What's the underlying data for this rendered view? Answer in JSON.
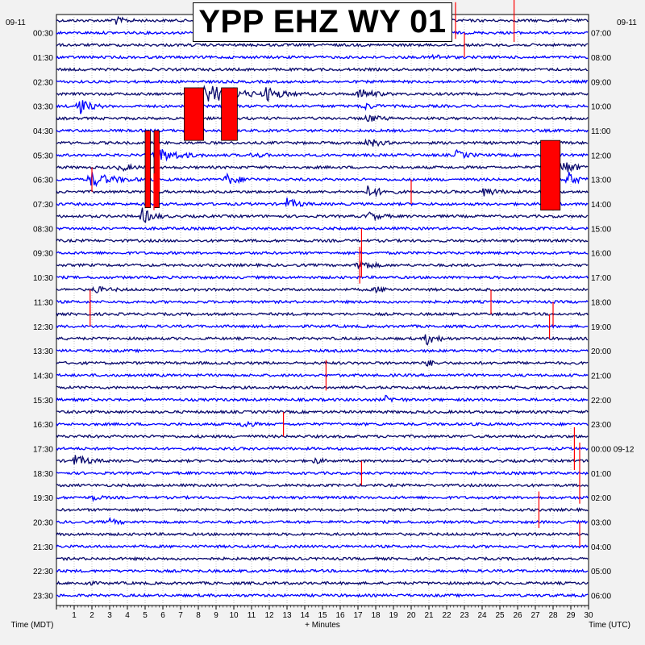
{
  "chart_data": {
    "type": "seismogram",
    "title": "YPP EHZ WY 01",
    "left_date": "09-11",
    "right_date": "09-11",
    "xlabel": "+ Minutes",
    "left_axis_label": "Time (MDT)",
    "right_axis_label": "Time (UTC)",
    "x_ticks": [
      "1",
      "2",
      "3",
      "4",
      "5",
      "6",
      "7",
      "8",
      "9",
      "10",
      "11",
      "12",
      "13",
      "14",
      "15",
      "16",
      "17",
      "18",
      "19",
      "20",
      "21",
      "22",
      "23",
      "24",
      "25",
      "26",
      "27",
      "28",
      "29",
      "30"
    ],
    "xlim": [
      0,
      30
    ],
    "left_times": [
      "00:30",
      "01:30",
      "02:30",
      "03:30",
      "04:30",
      "05:30",
      "06:30",
      "07:30",
      "08:30",
      "09:30",
      "10:30",
      "11:30",
      "12:30",
      "13:30",
      "14:30",
      "15:30",
      "16:30",
      "17:30",
      "18:30",
      "19:30",
      "20:30",
      "21:30",
      "22:30",
      "23:30"
    ],
    "right_times": [
      "07:00",
      "08:00",
      "09:00",
      "10:00",
      "11:00",
      "12:00",
      "13:00",
      "14:00",
      "15:00",
      "16:00",
      "17:00",
      "18:00",
      "19:00",
      "20:00",
      "21:00",
      "22:00",
      "23:00",
      "00:00 09-12",
      "01:00",
      "02:00",
      "03:00",
      "04:00",
      "05:00",
      "06:00"
    ],
    "trace_count": 48,
    "trace_colors": [
      "#0a0a6e",
      "#0000ff"
    ],
    "clip_color": "#ff0000",
    "grid": true,
    "events": [
      {
        "trace": 0,
        "minute": 3.2,
        "amp": 0.8,
        "len": 1.5
      },
      {
        "trace": 3,
        "minute": 21.1,
        "amp": 0.6,
        "len": 1.5
      },
      {
        "trace": 6,
        "minute": 8.3,
        "amp": 1.8,
        "len": 4.5
      },
      {
        "trace": 6,
        "minute": 11.8,
        "amp": 1.0,
        "len": 2.5
      },
      {
        "trace": 6,
        "minute": 17.0,
        "amp": 1.0,
        "len": 2.0
      },
      {
        "trace": 7,
        "minute": 1.2,
        "amp": 1.8,
        "len": 1.5
      },
      {
        "trace": 7,
        "minute": 17.2,
        "amp": 0.7,
        "len": 1.5
      },
      {
        "trace": 8,
        "minute": 17.5,
        "amp": 0.8,
        "len": 1.5
      },
      {
        "trace": 10,
        "minute": 17.5,
        "amp": 1.0,
        "len": 1.5
      },
      {
        "trace": 11,
        "minute": 5.5,
        "amp": 1.5,
        "len": 3.0
      },
      {
        "trace": 11,
        "minute": 11.0,
        "amp": 0.5,
        "len": 1.5
      },
      {
        "trace": 11,
        "minute": 22.5,
        "amp": 0.8,
        "len": 1.5
      },
      {
        "trace": 12,
        "minute": 3.5,
        "amp": 0.8,
        "len": 1.5
      },
      {
        "trace": 12,
        "minute": 28.5,
        "amp": 1.5,
        "len": 1.5
      },
      {
        "trace": 13,
        "minute": 1.8,
        "amp": 1.5,
        "len": 3.0
      },
      {
        "trace": 13,
        "minute": 9.5,
        "amp": 1.0,
        "len": 2.0
      },
      {
        "trace": 13,
        "minute": 28.8,
        "amp": 1.5,
        "len": 1.2
      },
      {
        "trace": 14,
        "minute": 17.5,
        "amp": 1.0,
        "len": 2.0
      },
      {
        "trace": 14,
        "minute": 24.0,
        "amp": 0.8,
        "len": 2.0
      },
      {
        "trace": 15,
        "minute": 13.0,
        "amp": 1.0,
        "len": 1.5
      },
      {
        "trace": 16,
        "minute": 4.8,
        "amp": 1.5,
        "len": 1.5
      },
      {
        "trace": 16,
        "minute": 17.5,
        "amp": 0.9,
        "len": 1.5
      },
      {
        "trace": 20,
        "minute": 17.0,
        "amp": 1.2,
        "len": 1.5
      },
      {
        "trace": 22,
        "minute": 2.0,
        "amp": 0.6,
        "len": 2.0
      },
      {
        "trace": 22,
        "minute": 18.0,
        "amp": 0.5,
        "len": 1.5
      },
      {
        "trace": 26,
        "minute": 20.8,
        "amp": 1.2,
        "len": 1.5
      },
      {
        "trace": 28,
        "minute": 20.8,
        "amp": 0.8,
        "len": 1.0
      },
      {
        "trace": 31,
        "minute": 18.5,
        "amp": 0.6,
        "len": 1.5
      },
      {
        "trace": 33,
        "minute": 10.5,
        "amp": 0.9,
        "len": 1.0
      },
      {
        "trace": 36,
        "minute": 1.0,
        "amp": 1.0,
        "len": 2.0
      },
      {
        "trace": 36,
        "minute": 14.5,
        "amp": 0.6,
        "len": 1.0
      },
      {
        "trace": 39,
        "minute": 2.0,
        "amp": 0.5,
        "len": 1.0
      },
      {
        "trace": 41,
        "minute": 3.0,
        "amp": 0.5,
        "len": 1.2
      },
      {
        "trace": 46,
        "minute": 1.5,
        "amp": 0.4,
        "len": 1.0
      }
    ],
    "clip_blocks": [
      {
        "minute_start": 7.2,
        "minute_end": 8.3,
        "trace_start": 5.5,
        "trace_end": 9.8
      },
      {
        "minute_start": 9.3,
        "minute_end": 10.2,
        "trace_start": 5.5,
        "trace_end": 9.8
      },
      {
        "minute_start": 5.0,
        "minute_end": 5.3,
        "trace_start": 9.0,
        "trace_end": 15.3
      },
      {
        "minute_start": 5.5,
        "minute_end": 5.8,
        "trace_start": 9.0,
        "trace_end": 15.3
      },
      {
        "minute_start": 27.3,
        "minute_end": 28.4,
        "trace_start": 9.8,
        "trace_end": 15.5
      }
    ],
    "spikes": [
      {
        "trace": 12,
        "minute": 5.8,
        "h": 4.0
      },
      {
        "trace": 14,
        "minute": 5.5,
        "h": 3.0
      },
      {
        "trace": 13,
        "minute": 2.0,
        "h": 2.0
      },
      {
        "trace": 14,
        "minute": 20.0,
        "h": 2.0
      },
      {
        "trace": 19,
        "minute": 17.2,
        "h": 4.0
      },
      {
        "trace": 20,
        "minute": 17.1,
        "h": 3.0
      },
      {
        "trace": 23,
        "minute": 1.9,
        "h": 2.0
      },
      {
        "trace": 23,
        "minute": 24.5,
        "h": 2.0
      },
      {
        "trace": 29,
        "minute": 15.2,
        "h": 2.5
      },
      {
        "trace": 33,
        "minute": 12.8,
        "h": 2.0
      },
      {
        "trace": 35,
        "minute": 29.2,
        "h": 3.5
      },
      {
        "trace": 37,
        "minute": 29.5,
        "h": 5.0
      },
      {
        "trace": 37,
        "minute": 17.2,
        "h": 2.0
      },
      {
        "trace": 40,
        "minute": 27.2,
        "h": 3.0
      },
      {
        "trace": 42,
        "minute": 29.5,
        "h": 2.0
      },
      {
        "trace": 0,
        "minute": 22.5,
        "h": 3.0
      },
      {
        "trace": 0,
        "minute": 25.8,
        "h": 3.5
      },
      {
        "trace": 2,
        "minute": 23.0,
        "h": 2.0
      },
      {
        "trace": 24,
        "minute": 1.9,
        "h": 2.0
      },
      {
        "trace": 24,
        "minute": 28.0,
        "h": 2.0
      },
      {
        "trace": 25,
        "minute": 27.8,
        "h": 2.0
      }
    ]
  }
}
